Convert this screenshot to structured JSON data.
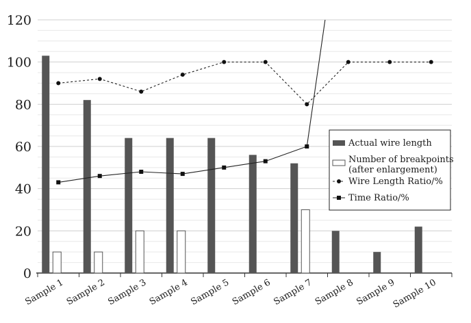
{
  "chart_data": {
    "type": "bar",
    "categories": [
      "Sample 1",
      "Sample 2",
      "Sample 3",
      "Sample 4",
      "Sample 5",
      "Sample 6",
      "Sample 7",
      "Sample 8",
      "Sample 9",
      "Sample 10"
    ],
    "ylim": [
      0,
      120
    ],
    "yticks": [
      0,
      20,
      40,
      60,
      80,
      100,
      120
    ],
    "grid": true,
    "legend_position": "right",
    "series": [
      {
        "name": "Actual wire length",
        "kind": "bar",
        "color": "#555555",
        "values": [
          103,
          82,
          64,
          64,
          64,
          56,
          52,
          20,
          10,
          22
        ]
      },
      {
        "name": "Number of breakpoints (after enlargement)",
        "legend_lines": [
          "Number of breakpoints",
          "(after enlargement)"
        ],
        "kind": "bar",
        "color": "#ffffff",
        "values": [
          10,
          10,
          20,
          20,
          null,
          null,
          30,
          null,
          null,
          null
        ]
      },
      {
        "name": "Wire Length Ratio/%",
        "kind": "line",
        "style": "dotted",
        "marker": "circle",
        "color": "#222222",
        "values": [
          90,
          92,
          86,
          94,
          100,
          100,
          80,
          100,
          100,
          100
        ]
      },
      {
        "name": "Time Ratio/%",
        "kind": "line",
        "style": "solid",
        "marker": "square",
        "color": "#222222",
        "values": [
          43,
          46,
          48,
          47,
          50,
          53,
          60,
          null,
          null,
          null
        ],
        "tail_exceeds_axis": true
      }
    ]
  }
}
